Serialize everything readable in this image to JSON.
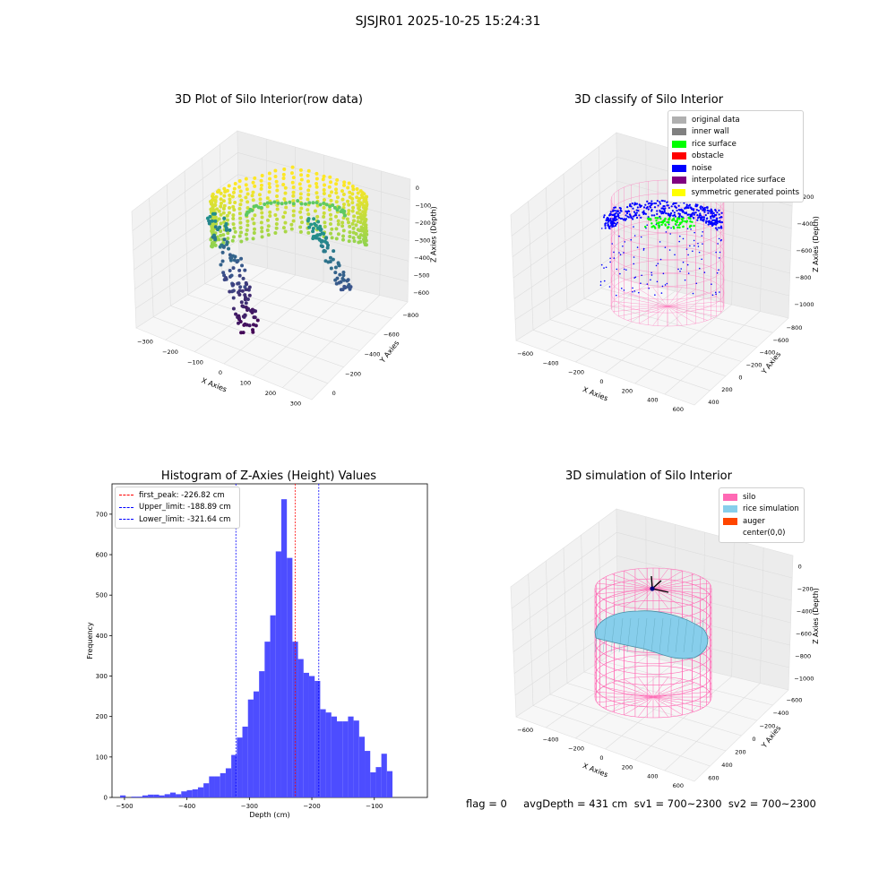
{
  "figure": {
    "suptitle": "SJSJR01 2025-10-25 15:24:31",
    "footer": "flag = 0     avgDepth = 431 cm  sv1 = 700~2300  sv2 = 700~2300"
  },
  "colors": {
    "viridis": [
      "#440154",
      "#3b528b",
      "#21918c",
      "#5ec962",
      "#fde725"
    ],
    "pink_wire": "#ff69b4",
    "blue_noise": "#0000ff",
    "green_surface": "#00ff00",
    "sky_surface": "#87ceeb",
    "hist_bar": "#4d4dff"
  },
  "chart_data": [
    {
      "type": "scatter",
      "title": "3D Plot of Silo Interior(row data)",
      "xlabel": "X Axies",
      "ylabel": "Y Axies",
      "zlabel": "Z Axies (Depth)",
      "x_ticks": [
        "−300",
        "−200",
        "−100",
        "0",
        "100",
        "200",
        "300"
      ],
      "y_ticks": [
        "−800",
        "−600",
        "−400",
        "−200",
        "0"
      ],
      "z_ticks": [
        "0",
        "−100",
        "−200",
        "−300",
        "−400",
        "−500",
        "−600"
      ]
    },
    {
      "type": "scatter",
      "title": "3D classify of Silo Interior",
      "xlabel": "X Axies",
      "ylabel": "Y Axies",
      "zlabel": "Z Axies (Depth)",
      "x_ticks": [
        "−600",
        "−400",
        "−200",
        "0",
        "200",
        "400",
        "600"
      ],
      "y_ticks": [
        "−800",
        "−600",
        "−400",
        "−200",
        "0",
        "200",
        "400"
      ],
      "z_ticks": [
        "−200",
        "−400",
        "−600",
        "−800",
        "−1000"
      ],
      "legend": [
        {
          "label": "original data",
          "color": "#b0b0b0"
        },
        {
          "label": "inner wall",
          "color": "#808080"
        },
        {
          "label": "rice surface",
          "color": "#00ff00"
        },
        {
          "label": "obstacle",
          "color": "#ff0000"
        },
        {
          "label": "noise",
          "color": "#0000ff"
        },
        {
          "label": "interpolated rice surface",
          "color": "#800080"
        },
        {
          "label": "symmetric generated points",
          "color": "#ffff00"
        }
      ]
    },
    {
      "type": "bar",
      "title": "Histogram of Z-Axies (Height) Values",
      "xlabel": "Depth (cm)",
      "ylabel": "Frequency",
      "xlim": [
        -520,
        -15
      ],
      "ylim": [
        0,
        775
      ],
      "x_ticks": [
        -500,
        -400,
        -300,
        -200,
        -100
      ],
      "y_ticks": [
        0,
        100,
        200,
        300,
        400,
        500,
        600,
        700
      ],
      "bin_width": 8.9,
      "bins_start": -507,
      "values": [
        5,
        0,
        2,
        2,
        5,
        7,
        7,
        5,
        8,
        12,
        8,
        15,
        18,
        20,
        25,
        35,
        52,
        52,
        60,
        72,
        105,
        148,
        175,
        242,
        262,
        312,
        385,
        450,
        608,
        737,
        592,
        385,
        342,
        308,
        300,
        288,
        218,
        210,
        200,
        188,
        188,
        200,
        190,
        150,
        115,
        62,
        75,
        108,
        65
      ],
      "reference_lines": [
        {
          "label": "first_peak: -226.82 cm",
          "value": -226.82,
          "color": "#ff0000"
        },
        {
          "label": "Upper_limit: -188.89 cm",
          "value": -188.89,
          "color": "#0000ff"
        },
        {
          "label": "Lower_limit: -321.64 cm",
          "value": -321.64,
          "color": "#0000ff"
        }
      ]
    },
    {
      "type": "scatter",
      "title": "3D simulation of Silo Interior",
      "xlabel": "X Axies",
      "ylabel": "Y Axies",
      "zlabel": "Z Axies (Depth)",
      "x_ticks": [
        "−600",
        "−400",
        "−200",
        "0",
        "200",
        "400",
        "600"
      ],
      "y_ticks": [
        "−600",
        "−400",
        "−200",
        "0",
        "200",
        "400",
        "600"
      ],
      "z_ticks": [
        "0",
        "−200",
        "−400",
        "−600",
        "−800",
        "−1000"
      ],
      "legend": [
        {
          "label": "silo",
          "color": "#ff69b4"
        },
        {
          "label": "rice simulation",
          "color": "#87ceeb"
        },
        {
          "label": "auger",
          "color": "#ff4500"
        },
        {
          "label": "center(0,0)",
          "color": ""
        }
      ]
    }
  ]
}
